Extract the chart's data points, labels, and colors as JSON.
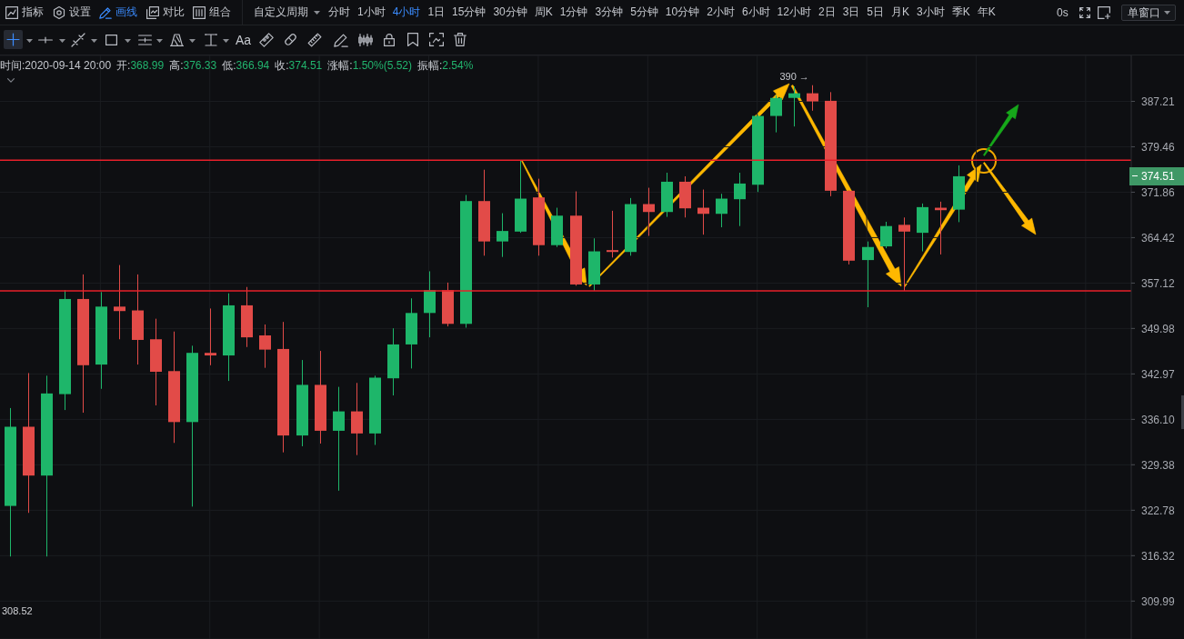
{
  "chart_data": {
    "type": "candlestick",
    "categories": [
      null,
      null,
      null,
      null,
      null,
      null,
      null,
      null,
      null,
      null,
      null,
      null,
      null,
      null,
      null,
      null,
      null,
      null,
      null,
      null,
      null,
      null,
      null,
      null,
      null,
      null,
      null,
      null,
      null,
      null,
      null,
      null,
      null,
      null,
      null,
      null,
      null,
      null,
      null,
      null,
      null,
      null,
      null,
      null,
      null,
      null,
      null,
      null,
      null,
      null,
      null,
      null,
      null,
      null,
      null,
      null,
      null,
      null,
      null,
      null,
      null,
      null
    ],
    "ohlc": [
      [
        323.4,
        337.8,
        316.2,
        335.0
      ],
      [
        335.0,
        343.1,
        322.4,
        327.8
      ],
      [
        327.8,
        342.7,
        316.2,
        340.0
      ],
      [
        339.9,
        356.0,
        337.5,
        354.6
      ],
      [
        354.6,
        358.5,
        337.1,
        344.3
      ],
      [
        344.4,
        355.7,
        340.7,
        353.4
      ],
      [
        353.4,
        360.0,
        348.3,
        352.7
      ],
      [
        352.8,
        358.5,
        344.4,
        348.2
      ],
      [
        348.3,
        351.5,
        338.2,
        343.3
      ],
      [
        343.4,
        349.5,
        332.6,
        335.7
      ],
      [
        335.7,
        347.3,
        323.3,
        346.2
      ],
      [
        346.2,
        353.1,
        344.3,
        345.8
      ],
      [
        345.8,
        355.5,
        341.9,
        353.6
      ],
      [
        353.6,
        356.5,
        347.1,
        348.6
      ],
      [
        348.9,
        350.6,
        343.9,
        346.7
      ],
      [
        346.8,
        351.0,
        331.2,
        333.7
      ],
      [
        333.7,
        345.1,
        332.1,
        341.3
      ],
      [
        341.3,
        346.5,
        332.5,
        334.4
      ],
      [
        334.4,
        341.0,
        325.6,
        337.3
      ],
      [
        337.3,
        341.6,
        330.8,
        334.0
      ],
      [
        334.0,
        342.7,
        332.3,
        342.4
      ],
      [
        342.3,
        350.0,
        339.7,
        347.5
      ],
      [
        347.5,
        354.7,
        343.8,
        352.4
      ],
      [
        352.4,
        359.0,
        348.6,
        356.0
      ],
      [
        356.0,
        357.2,
        350.3,
        350.7
      ],
      [
        350.7,
        371.4,
        350.1,
        370.4
      ],
      [
        370.4,
        375.6,
        361.5,
        363.8
      ],
      [
        363.8,
        368.4,
        361.3,
        365.5
      ],
      [
        365.4,
        377.1,
        365.2,
        370.8
      ],
      [
        371.0,
        374.1,
        361.5,
        363.2
      ],
      [
        363.2,
        369.3,
        362.9,
        368.0
      ],
      [
        368.0,
        372.0,
        356.7,
        356.9
      ],
      [
        356.9,
        364.3,
        355.9,
        362.2
      ],
      [
        362.4,
        368.8,
        361.2,
        362.1
      ],
      [
        362.1,
        370.9,
        361.5,
        369.9
      ],
      [
        369.9,
        372.6,
        364.7,
        368.6
      ],
      [
        368.6,
        375.1,
        367.8,
        373.6
      ],
      [
        373.6,
        374.5,
        367.7,
        369.2
      ],
      [
        369.3,
        372.3,
        364.9,
        368.3
      ],
      [
        368.3,
        371.6,
        366.1,
        370.8
      ],
      [
        370.7,
        375.1,
        366.3,
        373.3
      ],
      [
        373.1,
        384.9,
        371.9,
        384.7
      ],
      [
        384.7,
        388.2,
        381.9,
        387.8
      ],
      [
        387.8,
        389.8,
        382.9,
        388.6
      ],
      [
        388.6,
        390,
        385.6,
        387.2
      ],
      [
        387.3,
        388.8,
        371.2,
        372.1
      ],
      [
        372.1,
        372.2,
        360.1,
        360.7
      ],
      [
        360.8,
        363.8,
        353.3,
        362.9
      ],
      [
        363.0,
        367.0,
        362.7,
        366.3
      ],
      [
        366.5,
        367.7,
        355.9,
        365.4
      ],
      [
        365.2,
        370.0,
        362.2,
        369.4
      ],
      [
        369.3,
        370.3,
        361.7,
        368.9
      ],
      [
        368.99,
        376.33,
        366.94,
        374.51
      ],
      null,
      null,
      null,
      null,
      null,
      null,
      null,
      null,
      null
    ],
    "colors": [
      "#1eb66a",
      "#e24b48",
      "#1eb66a",
      "#1eb66a",
      "#e24b48",
      "#1eb66a",
      "#e24b48",
      "#e24b48",
      "#e24b48",
      "#e24b48",
      "#1eb66a",
      "#e24b48",
      "#1eb66a",
      "#e24b48",
      "#e24b48",
      "#e24b48",
      "#1eb66a",
      "#e24b48",
      "#1eb66a",
      "#e24b48",
      "#1eb66a",
      "#1eb66a",
      "#1eb66a",
      "#1eb66a",
      "#e24b48",
      "#1eb66a",
      "#e24b48",
      "#1eb66a",
      "#1eb66a",
      "#e24b48",
      "#1eb66a",
      "#e24b48",
      "#1eb66a",
      "#e24b48",
      "#1eb66a",
      "#e24b48",
      "#1eb66a",
      "#e24b48",
      "#e24b48",
      "#1eb66a",
      "#1eb66a",
      "#1eb66a",
      "#1eb66a",
      "#1eb66a",
      "#e24b48",
      "#e24b48",
      "#e24b48",
      "#1eb66a",
      "#1eb66a",
      "#e24b48",
      "#1eb66a",
      "#e24b48",
      "#1eb66a",
      null,
      null,
      null,
      null,
      null,
      null,
      null,
      null,
      null
    ],
    "ylim": [
      304.8,
      395.2
    ],
    "yticks": [
      309.99,
      316.32,
      322.78,
      329.38,
      {
        "value": 336.1,
        "label": "336.10"
      },
      342.97,
      349.98,
      357.12,
      364.42,
      371.86,
      379.46,
      387.21
    ],
    "log": true,
    "grid": true,
    "ref_lines": [
      {
        "axis": "y",
        "value": 377.2,
        "color": "#e8202a"
      },
      {
        "axis": "y",
        "value": 355.9,
        "color": "#e8202a"
      }
    ],
    "annotations": [
      "指标",
      "设置",
      "画线",
      "对比",
      "组合",
      "自定义周期",
      "分时",
      "1小时",
      "4小时",
      "1日",
      "15分钟",
      "30分钟",
      "周K",
      "1分钟",
      "3分钟",
      "5分钟",
      "10分钟",
      "2小时",
      "6小时",
      "12小时",
      "2日",
      "3日",
      "5日",
      "月K",
      "3小时",
      "季K",
      "年K",
      "0s",
      "单窗口",
      "Aa",
      "时间:2020-09-14 20:00",
      "开:368.99",
      "高:376.33",
      "低:366.94",
      "收:374.51",
      "涨幅:1.50%(5.52)",
      "振幅:2.54%",
      "390 →",
      "308.52",
      "374.51"
    ]
  }
}
